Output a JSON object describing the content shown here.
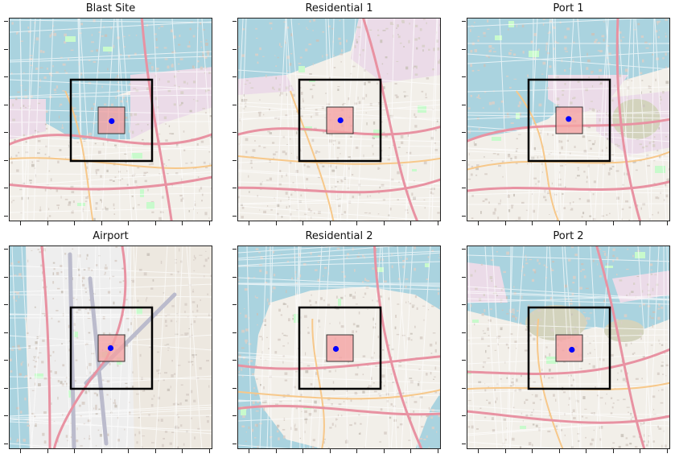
{
  "figure": {
    "panels": [
      {
        "id": "blast-site",
        "title": "Blast Site",
        "variant": "harbor",
        "point": [
          0.51,
          0.53
        ]
      },
      {
        "id": "residential-1",
        "title": "Residential 1",
        "variant": "dense-coast",
        "point": [
          0.52,
          0.5
        ]
      },
      {
        "id": "port-1",
        "title": "Port 1",
        "variant": "port-east",
        "point": [
          0.48,
          0.45
        ]
      },
      {
        "id": "airport",
        "title": "Airport",
        "variant": "airport",
        "point": [
          0.47,
          0.5
        ]
      },
      {
        "id": "residential-2",
        "title": "Residential 2",
        "variant": "peninsula",
        "point": [
          0.35,
          0.53
        ]
      },
      {
        "id": "port-2",
        "title": "Port 2",
        "variant": "port-south",
        "point": [
          0.6,
          0.56
        ]
      }
    ],
    "colors": {
      "water": "#aad3df",
      "land": "#f2efe9",
      "built": "#d9d0c9",
      "industrial": "#ebdbe8",
      "road_major": "#e892a2",
      "road_secondary": "#f7c88a",
      "park": "#c8facc",
      "runway": "#bbbbcc",
      "inner_square_fill": "#f4a2a2",
      "marker": "#0000ff",
      "square_stroke": "#000000"
    }
  }
}
